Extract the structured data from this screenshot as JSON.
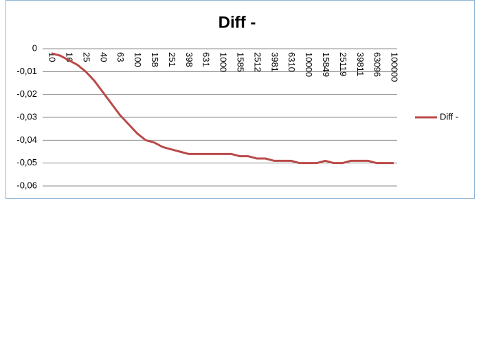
{
  "chart_data": {
    "type": "line",
    "title": "Diff -",
    "categories": [
      "10",
      null,
      "16",
      null,
      "25",
      null,
      "40",
      null,
      "63",
      null,
      "100",
      null,
      "158",
      null,
      "251",
      null,
      "398",
      null,
      "631",
      null,
      "1000",
      null,
      "1585",
      null,
      "2512",
      null,
      "3981",
      null,
      "6310",
      null,
      "10000",
      null,
      "15849",
      null,
      "25119",
      null,
      "39811",
      null,
      "63096",
      null,
      "100000"
    ],
    "series": [
      {
        "name": "Diff -",
        "color": "#b94a48",
        "values": [
          -0.002,
          -0.003,
          -0.005,
          -0.007,
          -0.01,
          -0.014,
          -0.019,
          -0.024,
          -0.029,
          -0.033,
          -0.037,
          -0.04,
          -0.041,
          -0.043,
          -0.044,
          -0.045,
          -0.046,
          -0.046,
          -0.046,
          -0.046,
          -0.046,
          -0.046,
          -0.047,
          -0.047,
          -0.048,
          -0.048,
          -0.049,
          -0.049,
          -0.049,
          -0.05,
          -0.05,
          -0.05,
          -0.049,
          -0.05,
          -0.05,
          -0.049,
          -0.049,
          -0.049,
          -0.05,
          -0.05,
          -0.05
        ]
      }
    ],
    "ylim": [
      -0.06,
      0
    ],
    "yticks": [
      {
        "value": -0.06,
        "label": "-0,06"
      },
      {
        "value": -0.05,
        "label": "-0,05"
      },
      {
        "value": -0.04,
        "label": "-0,04"
      },
      {
        "value": -0.03,
        "label": "-0,03"
      },
      {
        "value": -0.02,
        "label": "-0,02"
      },
      {
        "value": -0.01,
        "label": "-0,01"
      },
      0
    ],
    "grid": true,
    "legend": "right"
  }
}
